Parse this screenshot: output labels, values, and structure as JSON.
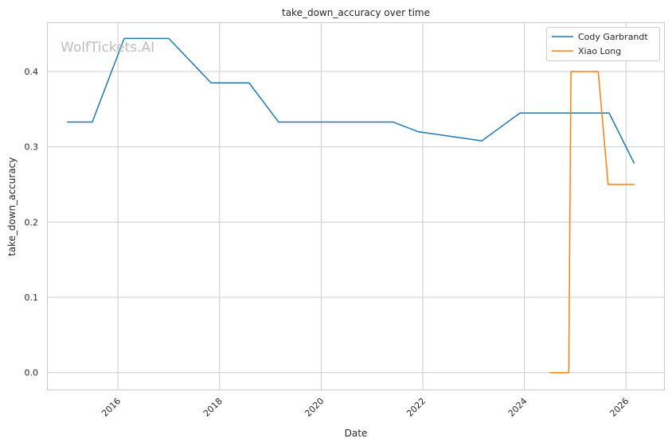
{
  "watermark": "WolfTickets.AI",
  "chart_data": {
    "type": "line",
    "title": "take_down_accuracy over time",
    "xlabel": "Date",
    "ylabel": "take_down_accuracy",
    "x_range": [
      "2014-08-15",
      "2026-10-01"
    ],
    "ylim": [
      -0.0225,
      0.4645
    ],
    "x_ticks": [
      "2016",
      "2018",
      "2020",
      "2022",
      "2024",
      "2026"
    ],
    "y_ticks": [
      "0.0",
      "0.1",
      "0.2",
      "0.3",
      "0.4"
    ],
    "grid": true,
    "legend_position": "top-right",
    "series": [
      {
        "name": "Cody Garbrandt",
        "color": "#1f77b4",
        "points": [
          [
            "2015-01-01",
            0.333
          ],
          [
            "2015-07-01",
            0.333
          ],
          [
            "2016-02-15",
            0.444
          ],
          [
            "2017-01-01",
            0.444
          ],
          [
            "2017-11-01",
            0.385
          ],
          [
            "2018-08-01",
            0.385
          ],
          [
            "2019-03-01",
            0.333
          ],
          [
            "2021-06-01",
            0.333
          ],
          [
            "2021-12-01",
            0.32
          ],
          [
            "2023-03-01",
            0.308
          ],
          [
            "2023-12-01",
            0.345
          ],
          [
            "2025-09-01",
            0.345
          ],
          [
            "2026-03-01",
            0.278
          ]
        ]
      },
      {
        "name": "Xiao Long",
        "color": "#ff7f0e",
        "points": [
          [
            "2024-07-01",
            0.0
          ],
          [
            "2024-11-15",
            0.0
          ],
          [
            "2024-12-01",
            0.4
          ],
          [
            "2025-06-15",
            0.4
          ],
          [
            "2025-08-25",
            0.25
          ],
          [
            "2026-03-01",
            0.25
          ]
        ]
      }
    ]
  }
}
